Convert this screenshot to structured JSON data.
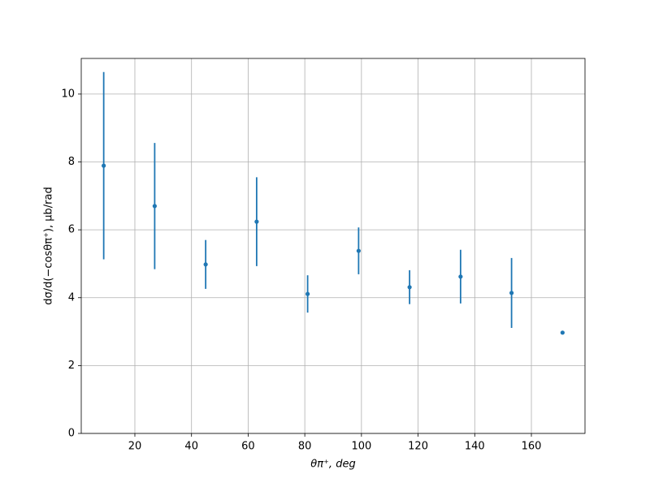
{
  "chart_data": {
    "type": "errorbar",
    "x_label": "θπ⁺, deg",
    "y_label": "dσ/d(−cosθπ⁺), μb/rad",
    "x": [
      9,
      27,
      45,
      63,
      81,
      99,
      117,
      135,
      153,
      171
    ],
    "series": [
      {
        "color": "#1f77b4",
        "values": [
          7.89,
          6.7,
          4.98,
          6.24,
          4.11,
          5.38,
          4.31,
          4.62,
          4.14,
          2.97
        ],
        "errors": [
          2.76,
          1.86,
          0.72,
          1.31,
          0.55,
          0.69,
          0.5,
          0.79,
          1.03,
          0
        ]
      }
    ],
    "xlim": [
      1.07,
      178.93
    ],
    "xticks": [
      20,
      40,
      60,
      80,
      100,
      120,
      140,
      160
    ],
    "ylim": [
      0,
      11.05
    ],
    "yticks": [
      0,
      2,
      4,
      6,
      8,
      10
    ],
    "grid": true
  }
}
